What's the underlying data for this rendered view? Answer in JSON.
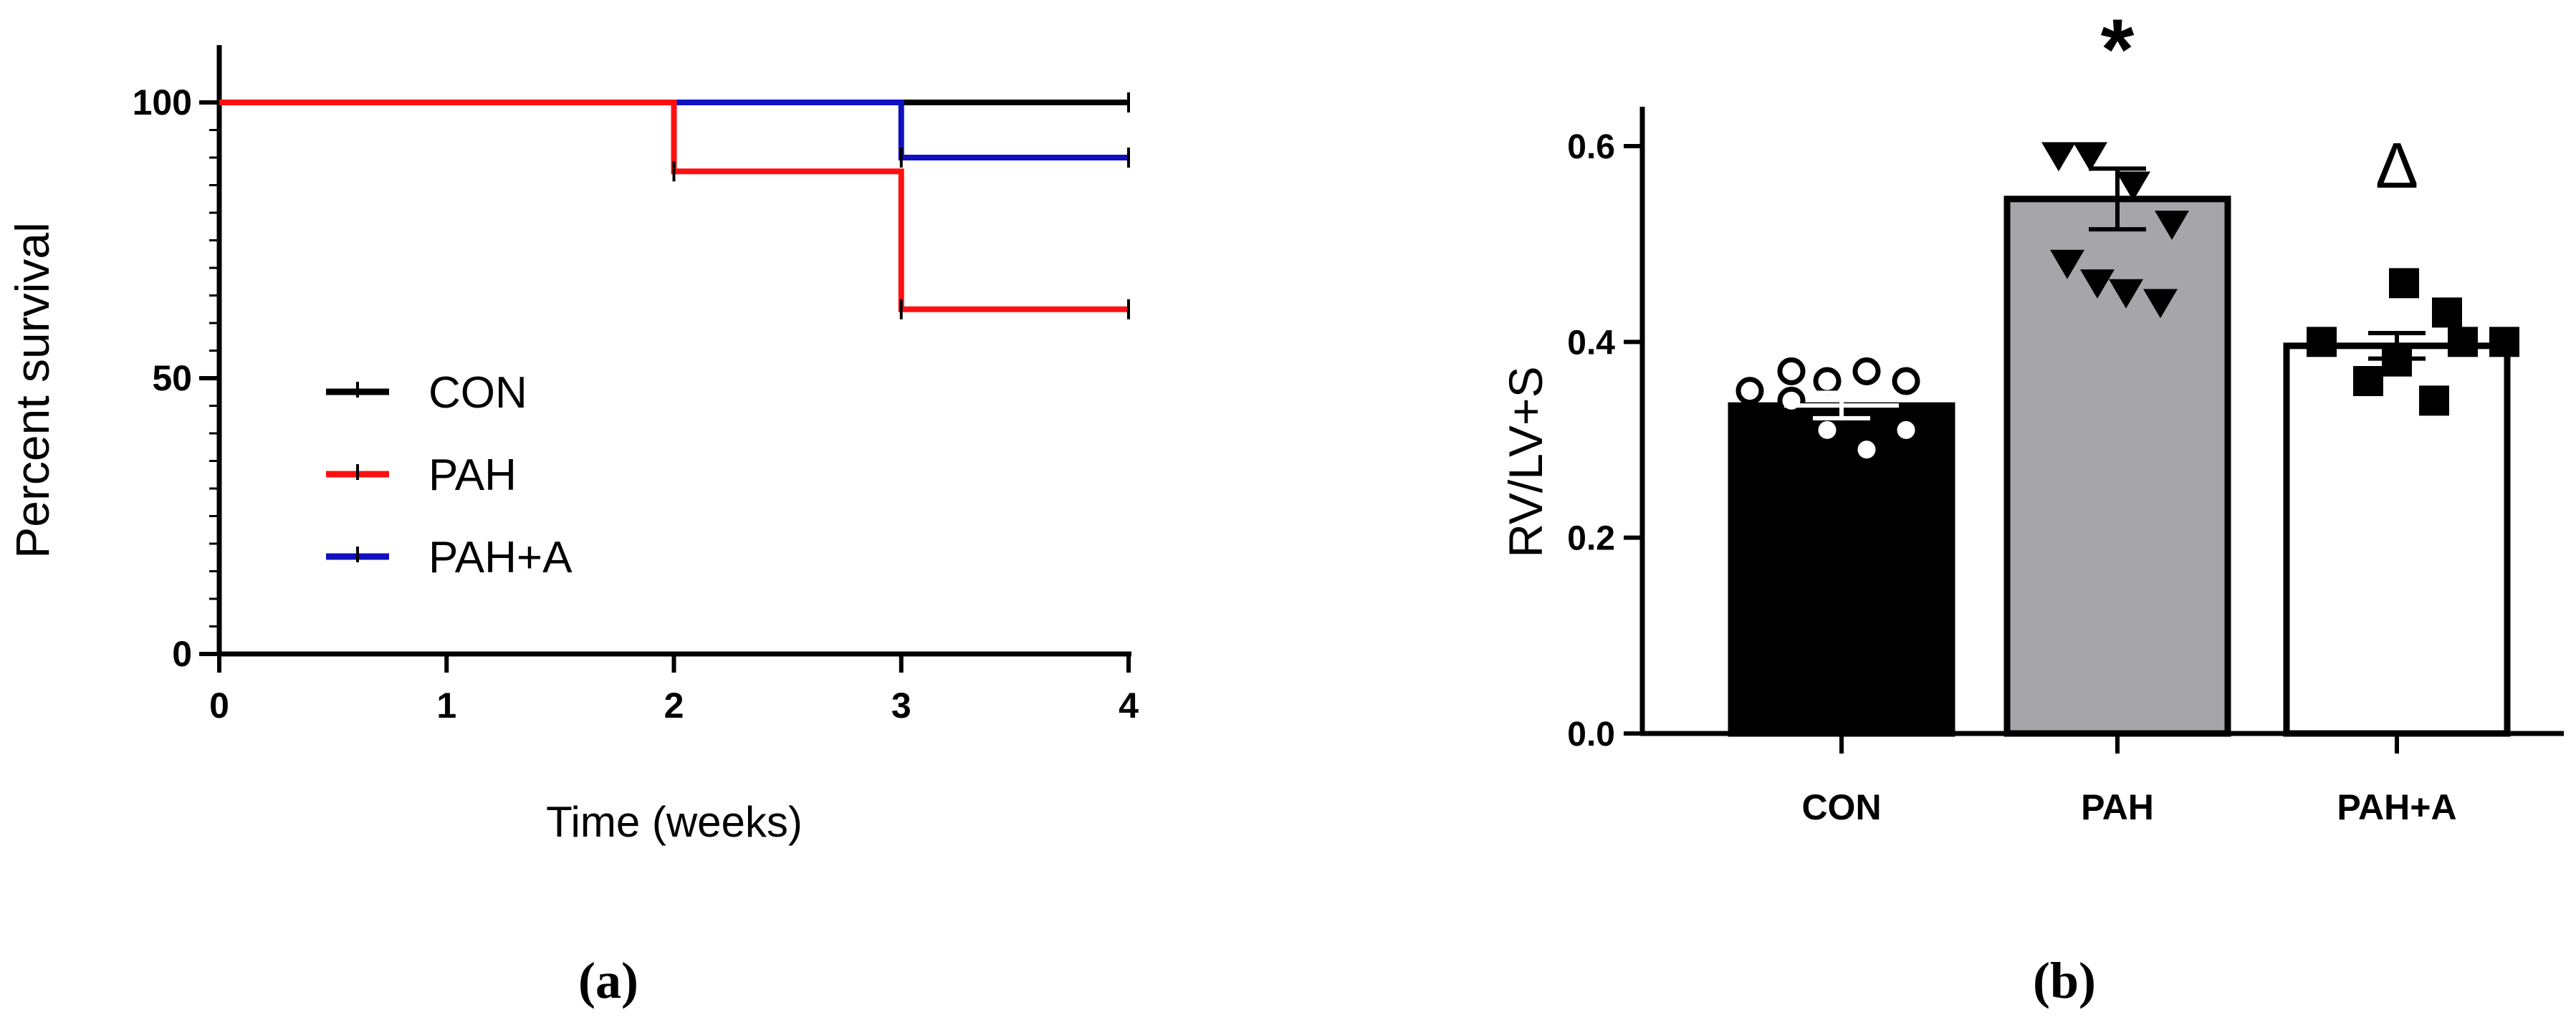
{
  "chart_data": [
    {
      "panel_label": "(a)",
      "type": "line",
      "step": true,
      "xlabel": "Time (weeks)",
      "ylabel": "Percent survival",
      "xlim": [
        0,
        4
      ],
      "ylim": [
        0,
        100
      ],
      "xticks": [
        "0",
        "1",
        "2",
        "3",
        "4"
      ],
      "yticks": [
        "0",
        "50",
        "100"
      ],
      "x_tick_values": [
        0,
        1,
        2,
        3,
        4
      ],
      "y_tick_values": [
        0,
        50,
        100
      ],
      "legend_position": "center-left",
      "series": [
        {
          "name": "CON",
          "color": "#000000",
          "x": [
            0,
            4
          ],
          "y": [
            100,
            100
          ]
        },
        {
          "name": "PAH",
          "color": "#ff1010",
          "x": [
            0,
            2,
            3,
            4
          ],
          "y": [
            100,
            87.5,
            62.5,
            62.5
          ]
        },
        {
          "name": "PAH+A",
          "color": "#1010c0",
          "x": [
            0,
            3,
            4
          ],
          "y": [
            100,
            90,
            90
          ]
        }
      ]
    },
    {
      "panel_label": "(b)",
      "type": "bar",
      "ylabel": "RV/LV+S",
      "ylim": [
        0,
        0.6
      ],
      "yticks": [
        "0.0",
        "0.2",
        "0.4",
        "0.6"
      ],
      "y_tick_values": [
        0,
        0.2,
        0.4,
        0.6
      ],
      "categories": [
        "CON",
        "PAH",
        "PAH+A"
      ],
      "values": [
        0.335,
        0.546,
        0.396
      ],
      "errors": [
        0.013,
        0.031,
        0.013
      ],
      "bar_colors": [
        "#000000",
        "#a6a5aa",
        "#ffffff"
      ],
      "annotations": [
        "",
        "*",
        "Δ"
      ],
      "points": [
        {
          "marker": "circle-open",
          "values": [
            0.35,
            0.37,
            0.36,
            0.37,
            0.36,
            0.34,
            0.31,
            0.29,
            0.31
          ]
        },
        {
          "marker": "triangle-down",
          "values": [
            0.59,
            0.59,
            0.56,
            0.52,
            0.48,
            0.46,
            0.45,
            0.44
          ]
        },
        {
          "marker": "square",
          "values": [
            0.4,
            0.46,
            0.43,
            0.4,
            0.4,
            0.38,
            0.36,
            0.34
          ]
        }
      ]
    }
  ]
}
